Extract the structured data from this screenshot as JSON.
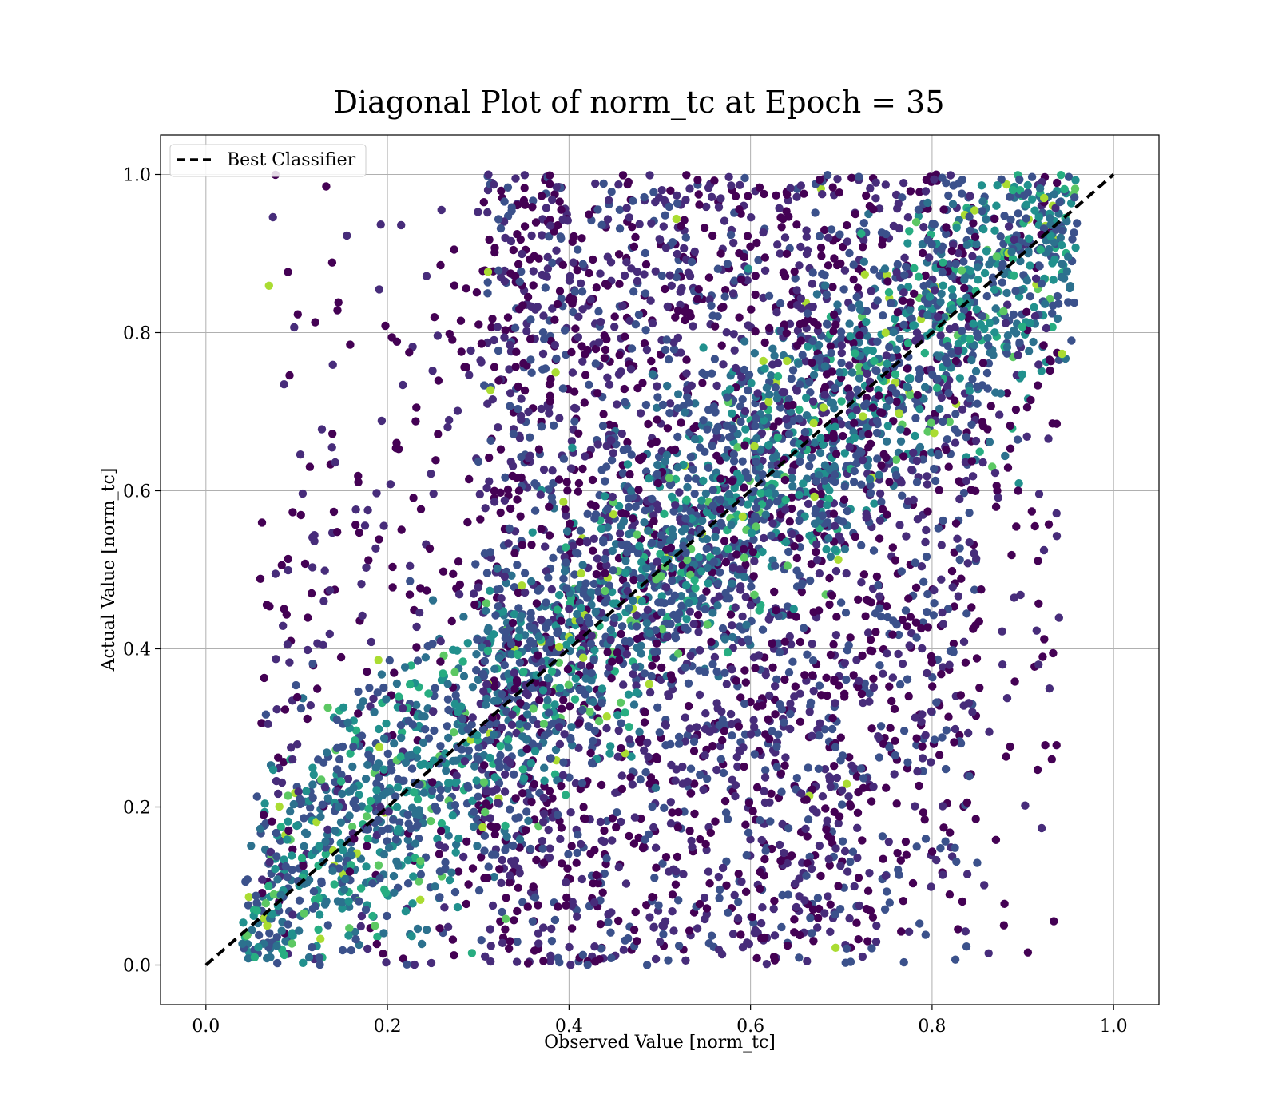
{
  "chart_data": {
    "type": "scatter",
    "title": "Diagonal Plot of norm_tc at Epoch = 35",
    "xlabel": "Observed Value [norm_tc]",
    "ylabel": "Actual Value [norm_tc]",
    "xlim": [
      -0.05,
      1.05
    ],
    "ylim": [
      -0.05,
      1.05
    ],
    "x_ticks": [
      "0.0",
      "0.2",
      "0.4",
      "0.6",
      "0.8",
      "1.0"
    ],
    "y_ticks": [
      "0.0",
      "0.2",
      "0.4",
      "0.6",
      "0.8",
      "1.0"
    ],
    "grid": true,
    "legend": {
      "placement": "top-left",
      "entries": [
        "Best Classifier"
      ]
    },
    "reference_line": {
      "name": "Best Classifier",
      "x": [
        0.0,
        1.0
      ],
      "y": [
        0.0,
        1.0
      ],
      "style": "dashed",
      "color": "#000000"
    },
    "scatter": {
      "colormap": "viridis",
      "x_range_observed": [
        0.04,
        0.96
      ],
      "y_range_observed": [
        0.0,
        1.0
      ],
      "density_note": "tens of thousands of points, densest band along diagonal",
      "colors": [
        "#440154",
        "#472c7a",
        "#3b518b",
        "#2c718e",
        "#21908d",
        "#27ad81",
        "#5cc863",
        "#aadc32"
      ]
    }
  }
}
